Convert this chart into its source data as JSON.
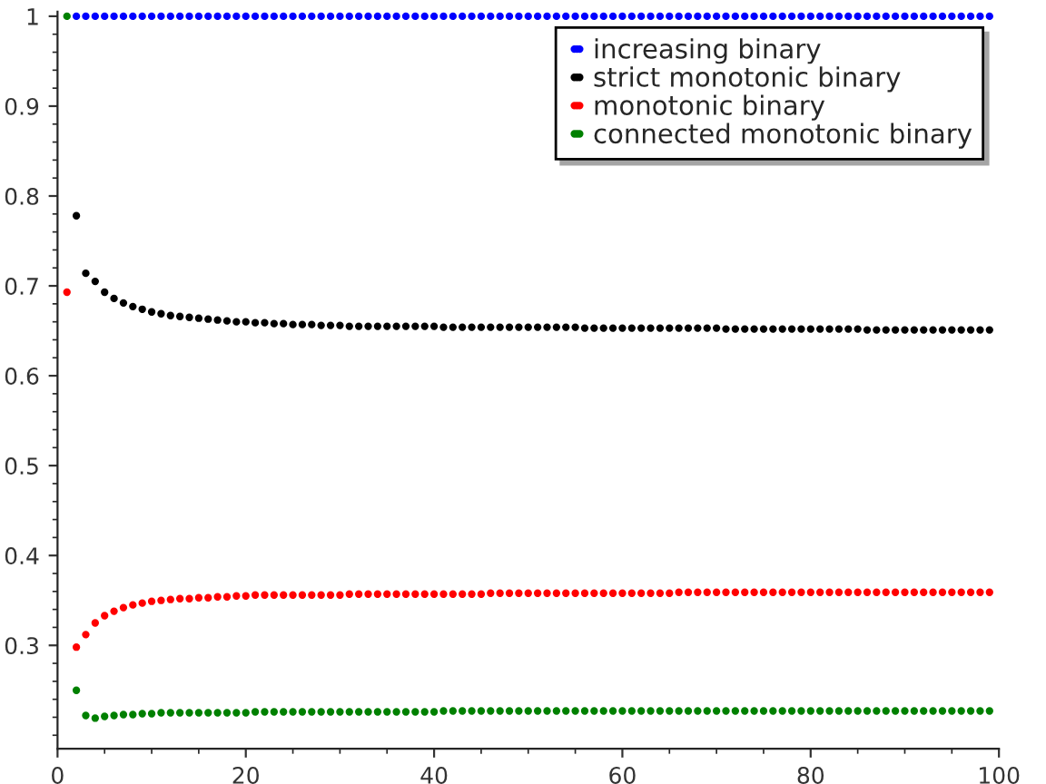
{
  "chart_data": {
    "type": "scatter",
    "marker": "circle",
    "legend": "top right",
    "grid": false,
    "x": [
      1,
      2,
      3,
      4,
      5,
      6,
      7,
      8,
      9,
      10,
      11,
      12,
      13,
      14,
      15,
      16,
      17,
      18,
      19,
      20,
      21,
      22,
      23,
      24,
      25,
      26,
      27,
      28,
      29,
      30,
      31,
      32,
      33,
      34,
      35,
      36,
      37,
      38,
      39,
      40,
      41,
      42,
      43,
      44,
      45,
      46,
      47,
      48,
      49,
      50,
      51,
      52,
      53,
      54,
      55,
      56,
      57,
      58,
      59,
      60,
      61,
      62,
      63,
      64,
      65,
      66,
      67,
      68,
      69,
      70,
      71,
      72,
      73,
      74,
      75,
      76,
      77,
      78,
      79,
      80,
      81,
      82,
      83,
      84,
      85,
      86,
      87,
      88,
      89,
      90,
      91,
      92,
      93,
      94,
      95,
      96,
      97,
      98,
      99
    ],
    "xlim": [
      0,
      100
    ],
    "xticks": [
      0,
      20,
      40,
      60,
      80,
      100
    ],
    "ylim": [
      0.185,
      1.005
    ],
    "yticks": [
      0.3,
      0.4,
      0.5,
      0.6,
      0.7,
      0.8,
      0.9,
      1
    ],
    "series": [
      {
        "name": "increasing binary",
        "color": "#0000ff",
        "values": [
          null,
          1,
          1,
          1,
          1,
          1,
          1,
          1,
          1,
          1,
          1,
          1,
          1,
          1,
          1,
          1,
          1,
          1,
          1,
          1,
          1,
          1,
          1,
          1,
          1,
          1,
          1,
          1,
          1,
          1,
          1,
          1,
          1,
          1,
          1,
          1,
          1,
          1,
          1,
          1,
          1,
          1,
          1,
          1,
          1,
          1,
          1,
          1,
          1,
          1,
          1,
          1,
          1,
          1,
          1,
          1,
          1,
          1,
          1,
          1,
          1,
          1,
          1,
          1,
          1,
          1,
          1,
          1,
          1,
          1,
          1,
          1,
          1,
          1,
          1,
          1,
          1,
          1,
          1,
          1,
          1,
          1,
          1,
          1,
          1,
          1,
          1,
          1,
          1,
          1,
          1,
          1,
          1,
          1,
          1,
          1,
          1,
          1,
          1
        ]
      },
      {
        "name": "strict monotonic binary",
        "color": "#000000",
        "values": [
          null,
          0.778,
          0.714,
          0.705,
          0.693,
          0.686,
          0.681,
          0.677,
          0.674,
          0.671,
          0.669,
          0.667,
          0.666,
          0.665,
          0.664,
          0.663,
          0.662,
          0.661,
          0.66,
          0.66,
          0.659,
          0.659,
          0.658,
          0.658,
          0.657,
          0.657,
          0.657,
          0.656,
          0.656,
          0.656,
          0.655,
          0.655,
          0.655,
          0.655,
          0.655,
          0.655,
          0.655,
          0.655,
          0.655,
          0.655,
          0.654,
          0.654,
          0.654,
          0.654,
          0.654,
          0.654,
          0.654,
          0.654,
          0.654,
          0.654,
          0.654,
          0.654,
          0.654,
          0.654,
          0.654,
          0.653,
          0.653,
          0.653,
          0.653,
          0.653,
          0.653,
          0.653,
          0.653,
          0.653,
          0.653,
          0.653,
          0.653,
          0.653,
          0.653,
          0.653,
          0.652,
          0.652,
          0.652,
          0.652,
          0.652,
          0.652,
          0.652,
          0.652,
          0.652,
          0.652,
          0.652,
          0.652,
          0.652,
          0.652,
          0.652,
          0.651,
          0.651,
          0.651,
          0.651,
          0.651,
          0.651,
          0.651,
          0.651,
          0.651,
          0.651,
          0.651,
          0.651,
          0.651,
          0.651
        ]
      },
      {
        "name": "monotonic binary",
        "color": "#ff0000",
        "values": [
          0.693,
          0.298,
          0.312,
          0.325,
          0.333,
          0.338,
          0.342,
          0.345,
          0.347,
          0.349,
          0.35,
          0.351,
          0.352,
          0.352,
          0.353,
          0.353,
          0.354,
          0.354,
          0.355,
          0.355,
          0.356,
          0.356,
          0.356,
          0.356,
          0.356,
          0.356,
          0.356,
          0.356,
          0.356,
          0.356,
          0.357,
          0.357,
          0.357,
          0.357,
          0.357,
          0.357,
          0.357,
          0.357,
          0.357,
          0.357,
          0.357,
          0.357,
          0.357,
          0.357,
          0.357,
          0.358,
          0.358,
          0.358,
          0.358,
          0.358,
          0.358,
          0.358,
          0.358,
          0.358,
          0.358,
          0.358,
          0.358,
          0.358,
          0.358,
          0.358,
          0.358,
          0.358,
          0.358,
          0.358,
          0.358,
          0.359,
          0.359,
          0.359,
          0.359,
          0.359,
          0.359,
          0.359,
          0.359,
          0.359,
          0.359,
          0.359,
          0.359,
          0.359,
          0.359,
          0.359,
          0.359,
          0.359,
          0.359,
          0.359,
          0.359,
          0.359,
          0.359,
          0.359,
          0.359,
          0.359,
          0.359,
          0.359,
          0.359,
          0.359,
          0.359,
          0.359,
          0.359,
          0.359,
          0.359
        ]
      },
      {
        "name": "connected monotonic binary",
        "color": "#008000",
        "values": [
          1,
          0.25,
          0.222,
          0.219,
          0.221,
          0.222,
          0.223,
          0.223,
          0.224,
          0.224,
          0.225,
          0.225,
          0.225,
          0.225,
          0.225,
          0.225,
          0.225,
          0.225,
          0.225,
          0.225,
          0.226,
          0.226,
          0.226,
          0.226,
          0.226,
          0.226,
          0.226,
          0.226,
          0.226,
          0.226,
          0.226,
          0.226,
          0.226,
          0.226,
          0.226,
          0.226,
          0.226,
          0.226,
          0.226,
          0.226,
          0.227,
          0.227,
          0.227,
          0.227,
          0.227,
          0.227,
          0.227,
          0.227,
          0.227,
          0.227,
          0.227,
          0.227,
          0.227,
          0.227,
          0.227,
          0.227,
          0.227,
          0.227,
          0.227,
          0.227,
          0.227,
          0.227,
          0.227,
          0.227,
          0.227,
          0.227,
          0.227,
          0.227,
          0.227,
          0.227,
          0.227,
          0.227,
          0.227,
          0.227,
          0.227,
          0.227,
          0.227,
          0.227,
          0.227,
          0.227,
          0.227,
          0.227,
          0.227,
          0.227,
          0.227,
          0.227,
          0.227,
          0.227,
          0.227,
          0.227,
          0.227,
          0.227,
          0.227,
          0.227,
          0.227,
          0.227,
          0.227,
          0.227,
          0.227
        ]
      }
    ]
  }
}
